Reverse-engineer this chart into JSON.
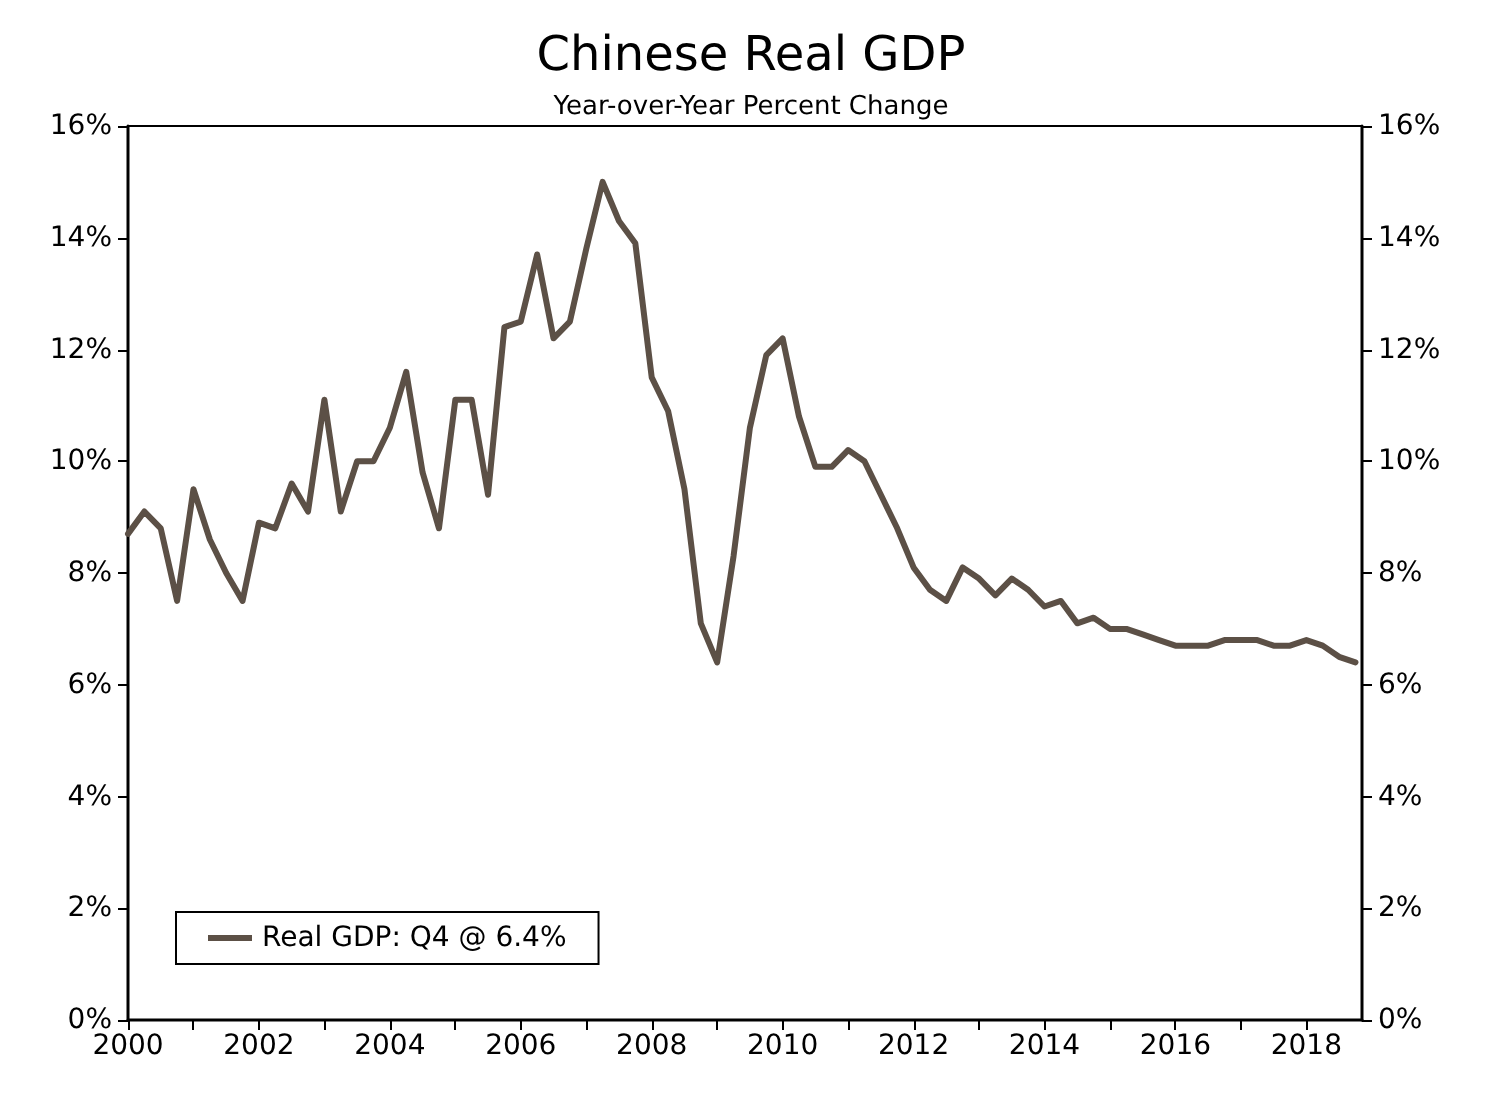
{
  "chart_data": {
    "type": "line",
    "title": "Chinese Real GDP",
    "subtitle": "Year-over-Year Percent Change",
    "x": [
      2000,
      2000.25,
      2000.5,
      2000.75,
      2001,
      2001.25,
      2001.5,
      2001.75,
      2002,
      2002.25,
      2002.5,
      2002.75,
      2003,
      2003.25,
      2003.5,
      2003.75,
      2004,
      2004.25,
      2004.5,
      2004.75,
      2005,
      2005.25,
      2005.5,
      2005.75,
      2006,
      2006.25,
      2006.5,
      2006.75,
      2007,
      2007.25,
      2007.5,
      2007.75,
      2008,
      2008.25,
      2008.5,
      2008.75,
      2009,
      2009.25,
      2009.5,
      2009.75,
      2010,
      2010.25,
      2010.5,
      2010.75,
      2011,
      2011.25,
      2011.5,
      2011.75,
      2012,
      2012.25,
      2012.5,
      2012.75,
      2013,
      2013.25,
      2013.5,
      2013.75,
      2014,
      2014.25,
      2014.5,
      2014.75,
      2015,
      2015.25,
      2015.5,
      2015.75,
      2016,
      2016.25,
      2016.5,
      2016.75,
      2017,
      2017.25,
      2017.5,
      2017.75,
      2018,
      2018.25,
      2018.5,
      2018.75
    ],
    "series": [
      {
        "name": "Real GDP: Q4 @ 6.4%",
        "color": "#5c5046",
        "values": [
          8.7,
          9.1,
          8.8,
          7.5,
          9.5,
          8.6,
          8.0,
          7.5,
          8.9,
          8.8,
          9.6,
          9.1,
          11.1,
          9.1,
          10.0,
          10.0,
          10.6,
          11.6,
          9.8,
          8.8,
          11.1,
          11.1,
          9.4,
          12.4,
          12.5,
          13.7,
          12.2,
          12.5,
          13.8,
          15.0,
          14.3,
          13.9,
          11.5,
          10.9,
          9.5,
          7.1,
          6.4,
          8.3,
          10.6,
          11.9,
          12.2,
          10.8,
          9.9,
          9.9,
          10.2,
          10.0,
          9.4,
          8.8,
          8.1,
          7.7,
          7.5,
          8.1,
          7.9,
          7.6,
          7.9,
          7.7,
          7.4,
          7.5,
          7.1,
          7.2,
          7.0,
          7.0,
          6.9,
          6.8,
          6.7,
          6.7,
          6.7,
          6.8,
          6.8,
          6.8,
          6.7,
          6.7,
          6.8,
          6.7,
          6.5,
          6.4
        ]
      }
    ],
    "xlim": [
      2000,
      2018.85
    ],
    "xticks": [
      2000,
      {
        "value": 2001,
        "label": null
      },
      2002,
      {
        "value": 2003,
        "label": null
      },
      2004,
      {
        "value": 2005,
        "label": null
      },
      2006,
      {
        "value": 2007,
        "label": null
      },
      2008,
      {
        "value": 2009,
        "label": null
      },
      2010,
      {
        "value": 2011,
        "label": null
      },
      2012,
      {
        "value": 2013,
        "label": null
      },
      2014,
      {
        "value": 2015,
        "label": null
      },
      2016,
      {
        "value": 2017,
        "label": null
      },
      2018
    ],
    "ylim": [
      0,
      16
    ],
    "yticks": [
      {
        "value": 0,
        "label": "0%"
      },
      {
        "value": 2,
        "label": "2%"
      },
      {
        "value": 4,
        "label": "4%"
      },
      {
        "value": 6,
        "label": "6%"
      },
      {
        "value": 8,
        "label": "8%"
      },
      {
        "value": 10,
        "label": "10%"
      },
      {
        "value": 12,
        "label": "12%"
      },
      {
        "value": 14,
        "label": "14%"
      },
      {
        "value": 16,
        "label": "16%"
      }
    ],
    "y2lim": [
      0,
      16
    ],
    "y2ticks": [
      {
        "value": 0,
        "label": "0%"
      },
      {
        "value": 2,
        "label": "2%"
      },
      {
        "value": 4,
        "label": "4%"
      },
      {
        "value": 6,
        "label": "6%"
      },
      {
        "value": 8,
        "label": "8%"
      },
      {
        "value": 10,
        "label": "10%"
      },
      {
        "value": 12,
        "label": "12%"
      },
      {
        "value": 14,
        "label": "14%"
      },
      {
        "value": 16,
        "label": "16%"
      }
    ],
    "legend": "bottom left",
    "grid": false,
    "marker": "none",
    "line_style": "solid"
  }
}
